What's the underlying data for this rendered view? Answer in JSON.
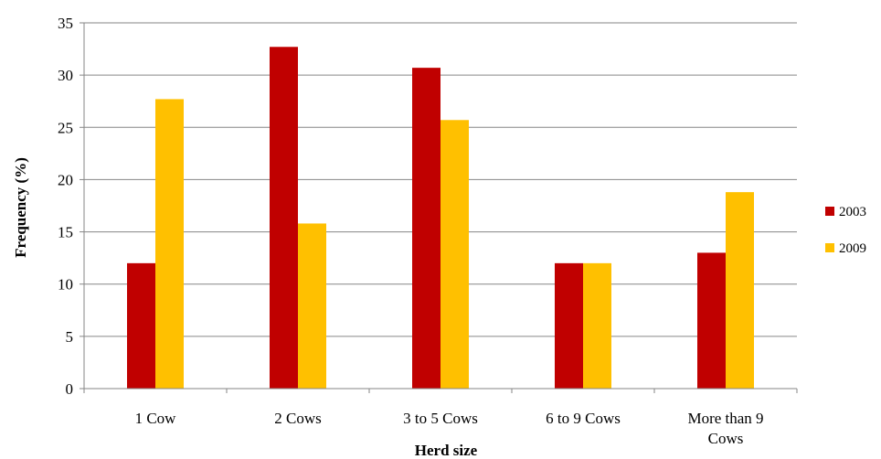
{
  "chart_data": {
    "type": "bar",
    "title": "",
    "xlabel": "Herd size",
    "ylabel": "Frequency (%)",
    "categories": [
      "1 Cow",
      "2 Cows",
      "3 to 5 Cows",
      "6 to 9 Cows",
      "More than 9 Cows"
    ],
    "category_lines": [
      [
        "1 Cow"
      ],
      [
        "2 Cows"
      ],
      [
        "3 to 5 Cows"
      ],
      [
        "6 to 9 Cows"
      ],
      [
        "More than 9",
        "Cows"
      ]
    ],
    "series": [
      {
        "name": "2003",
        "color": "#C00000",
        "values": [
          12,
          32.7,
          30.7,
          12,
          13
        ]
      },
      {
        "name": "2009",
        "color": "#FFC000",
        "values": [
          27.7,
          15.8,
          25.7,
          12,
          18.8
        ]
      }
    ],
    "ylim": [
      0,
      35
    ],
    "yticks": [
      0,
      5,
      10,
      15,
      20,
      25,
      30,
      35
    ],
    "grid": true,
    "legend_position": "right"
  }
}
